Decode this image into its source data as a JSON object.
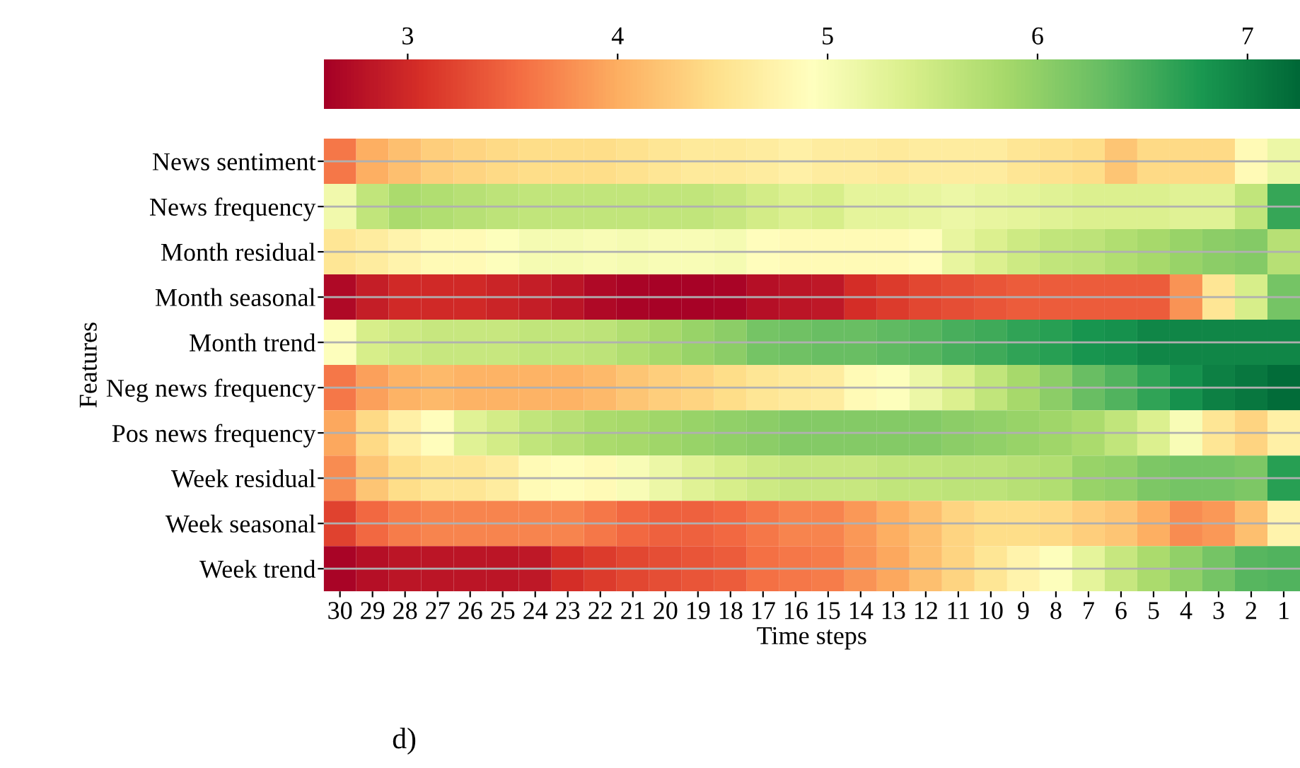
{
  "chart_data": {
    "type": "heatmap",
    "xlabel": "Time steps",
    "ylabel": "Features",
    "annotations": [
      "d)"
    ],
    "categories": [
      "30",
      "29",
      "28",
      "27",
      "26",
      "25",
      "24",
      "23",
      "22",
      "21",
      "20",
      "19",
      "18",
      "17",
      "16",
      "15",
      "14",
      "13",
      "12",
      "11",
      "10",
      "9",
      "8",
      "7",
      "6",
      "5",
      "4",
      "3",
      "2",
      "1"
    ],
    "y_categories": [
      "News sentiment",
      "News frequency",
      "Month residual",
      "Month seasonal",
      "Month trend",
      "Neg news frequency",
      "Pos news frequency",
      "Week residual",
      "Week seasonal",
      "Week trend"
    ],
    "cells": [
      [
        3.6,
        4.0,
        4.15,
        4.3,
        4.35,
        4.4,
        4.45,
        4.45,
        4.45,
        4.5,
        4.55,
        4.6,
        4.6,
        4.65,
        4.7,
        4.65,
        4.65,
        4.6,
        4.65,
        4.65,
        4.65,
        4.55,
        4.5,
        4.45,
        4.2,
        4.4,
        4.4,
        4.4,
        4.85,
        5.15
      ],
      [
        5.1,
        5.6,
        5.8,
        5.75,
        5.7,
        5.65,
        5.6,
        5.6,
        5.6,
        5.6,
        5.6,
        5.6,
        5.55,
        5.45,
        5.35,
        5.4,
        5.25,
        5.25,
        5.2,
        5.15,
        5.2,
        5.25,
        5.3,
        5.35,
        5.35,
        5.35,
        5.3,
        5.3,
        5.6,
        6.6
      ],
      [
        4.55,
        4.65,
        4.75,
        4.85,
        4.85,
        4.95,
        5.05,
        5.05,
        5.0,
        5.05,
        5.0,
        5.0,
        5.05,
        4.9,
        4.85,
        4.85,
        4.85,
        4.85,
        4.9,
        5.2,
        5.35,
        5.5,
        5.6,
        5.65,
        5.75,
        5.85,
        5.95,
        6.05,
        6.1,
        5.7
      ],
      [
        2.7,
        2.9,
        3.0,
        3.0,
        3.0,
        2.95,
        2.9,
        2.8,
        2.7,
        2.65,
        2.62,
        2.62,
        2.65,
        2.75,
        2.8,
        2.85,
        3.05,
        3.15,
        3.25,
        3.3,
        3.35,
        3.4,
        3.4,
        3.4,
        3.4,
        3.4,
        3.8,
        4.55,
        5.4,
        6.2
      ],
      [
        4.95,
        5.4,
        5.5,
        5.55,
        5.55,
        5.55,
        5.6,
        5.6,
        5.65,
        5.75,
        5.85,
        5.95,
        6.05,
        6.2,
        6.25,
        6.3,
        6.3,
        6.35,
        6.4,
        6.5,
        6.55,
        6.65,
        6.7,
        6.8,
        6.85,
        6.95,
        6.95,
        6.95,
        6.95,
        6.95
      ],
      [
        3.6,
        3.9,
        4.05,
        4.1,
        4.05,
        4.05,
        4.05,
        4.05,
        4.1,
        4.2,
        4.3,
        4.35,
        4.45,
        4.55,
        4.6,
        4.65,
        4.85,
        4.95,
        5.15,
        5.35,
        5.6,
        5.85,
        6.05,
        6.3,
        6.45,
        6.65,
        6.85,
        7.0,
        7.1,
        7.2
      ],
      [
        3.95,
        4.4,
        4.7,
        4.9,
        5.3,
        5.45,
        5.6,
        5.7,
        5.8,
        5.85,
        5.9,
        5.95,
        6.0,
        6.05,
        6.1,
        6.1,
        6.1,
        6.1,
        6.1,
        6.05,
        6.0,
        5.95,
        5.9,
        5.8,
        5.6,
        5.35,
        5.0,
        4.55,
        4.35,
        4.7
      ],
      [
        3.75,
        4.2,
        4.45,
        4.55,
        4.55,
        4.65,
        4.85,
        4.9,
        4.85,
        5.0,
        5.15,
        5.3,
        5.4,
        5.5,
        5.55,
        5.55,
        5.55,
        5.6,
        5.6,
        5.65,
        5.65,
        5.7,
        5.75,
        5.95,
        6.0,
        6.15,
        6.2,
        6.2,
        6.15,
        6.7
      ],
      [
        3.2,
        3.5,
        3.65,
        3.7,
        3.7,
        3.7,
        3.7,
        3.7,
        3.6,
        3.5,
        3.45,
        3.45,
        3.5,
        3.6,
        3.7,
        3.7,
        3.85,
        4.0,
        4.15,
        4.35,
        4.45,
        4.45,
        4.4,
        4.3,
        4.2,
        4.0,
        3.75,
        3.85,
        4.15,
        4.75
      ],
      [
        2.65,
        2.75,
        2.8,
        2.8,
        2.8,
        2.8,
        2.85,
        3.05,
        3.15,
        3.25,
        3.3,
        3.35,
        3.4,
        3.55,
        3.6,
        3.65,
        3.8,
        3.95,
        4.15,
        4.35,
        4.55,
        4.75,
        4.95,
        5.25,
        5.55,
        5.8,
        6.0,
        6.2,
        6.4,
        6.45
      ]
    ],
    "clim": [
      2.6,
      7.25
    ],
    "cticks": [
      3,
      4,
      5,
      6,
      7
    ],
    "grid": "y"
  }
}
